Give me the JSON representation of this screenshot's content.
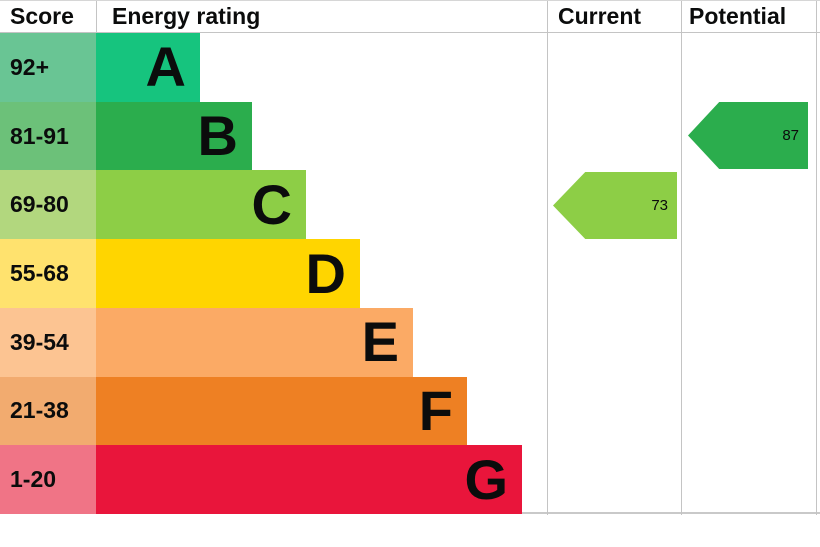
{
  "header": {
    "score": "Score",
    "energy_rating": "Energy rating",
    "current": "Current",
    "potential": "Potential"
  },
  "bands": [
    {
      "score": "92+",
      "letter": "A",
      "bar_color": "#16c47e",
      "score_color": "#69c594"
    },
    {
      "score": "81-91",
      "letter": "B",
      "bar_color": "#2bad4d",
      "score_color": "#6cc179"
    },
    {
      "score": "69-80",
      "letter": "C",
      "bar_color": "#8dce46",
      "score_color": "#b2d77e"
    },
    {
      "score": "55-68",
      "letter": "D",
      "bar_color": "#ffd500",
      "score_color": "#ffe26e"
    },
    {
      "score": "39-54",
      "letter": "E",
      "bar_color": "#fbaa65",
      "score_color": "#fcc492"
    },
    {
      "score": "21-38",
      "letter": "F",
      "bar_color": "#ee8023",
      "score_color": "#f2ab6f"
    },
    {
      "score": "1-20",
      "letter": "G",
      "bar_color": "#e9153b",
      "score_color": "#f07486"
    }
  ],
  "current": {
    "value": "73",
    "band": "C",
    "color": "#8dce46"
  },
  "potential": {
    "value": "87",
    "band": "B",
    "color": "#2bad4d"
  },
  "chart_data": {
    "type": "bar",
    "title": "Energy rating",
    "categories": [
      "A",
      "B",
      "C",
      "D",
      "E",
      "F",
      "G"
    ],
    "score_ranges": [
      "92+",
      "81-91",
      "69-80",
      "55-68",
      "39-54",
      "21-38",
      "1-20"
    ],
    "band_colors": [
      "#16c47e",
      "#2bad4d",
      "#8dce46",
      "#ffd500",
      "#fbaa65",
      "#ee8023",
      "#e9153b"
    ],
    "columns": [
      "Score",
      "Energy rating",
      "Current",
      "Potential"
    ],
    "current_rating": 73,
    "current_band": "C",
    "potential_rating": 87,
    "potential_band": "B",
    "score_range_full": [
      1,
      100
    ],
    "legend_position": "none",
    "grid": false
  }
}
